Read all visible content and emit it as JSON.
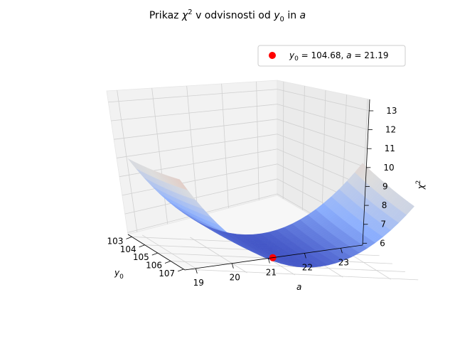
{
  "chart_data": {
    "type": "surface3d",
    "title_parts": {
      "prefix": "Prikaz ",
      "chi": "χ",
      "chi_sup": "2",
      "middle": " v odvisnosti od ",
      "y": "y",
      "y_sub": "0",
      "suffix": " in ",
      "a": "a"
    },
    "axes": {
      "x": {
        "label": "y",
        "label_sub": "0",
        "range": [
          102.7,
          107.1
        ],
        "ticks": [
          "103",
          "104",
          "105",
          "106",
          "107"
        ]
      },
      "y": {
        "label": "a",
        "range": [
          18.7,
          23.6
        ],
        "ticks": [
          "19",
          "20",
          "21",
          "22",
          "23"
        ]
      },
      "z": {
        "label": "χ",
        "label_sup": "2",
        "range": [
          5.9,
          13.6
        ],
        "ticks": [
          "6",
          "7",
          "8",
          "9",
          "10",
          "11",
          "12",
          "13"
        ]
      }
    },
    "surface": {
      "colormap": "coolwarm",
      "x_range": [
        102.7,
        106.7
      ],
      "y_range": [
        18.7,
        23.6
      ],
      "z_at_corners": {
        "y0_min_a_min": 11.9,
        "y0_min_a_max": 13.5,
        "y0_max_a_min": 7.6,
        "y0_max_a_max": 7.8
      },
      "minimum": {
        "y0": 104.68,
        "a": 21.19,
        "z": 6.1
      }
    },
    "best_fit_point": {
      "y0": 104.68,
      "a": 21.19,
      "color": "#ff0000"
    },
    "legend": {
      "position": "upper right",
      "parts": {
        "y": "y",
        "y_sub": "0",
        "eq1": " = 104.68, ",
        "a": "a",
        "eq2": " = 21.19"
      }
    },
    "grid": true
  }
}
